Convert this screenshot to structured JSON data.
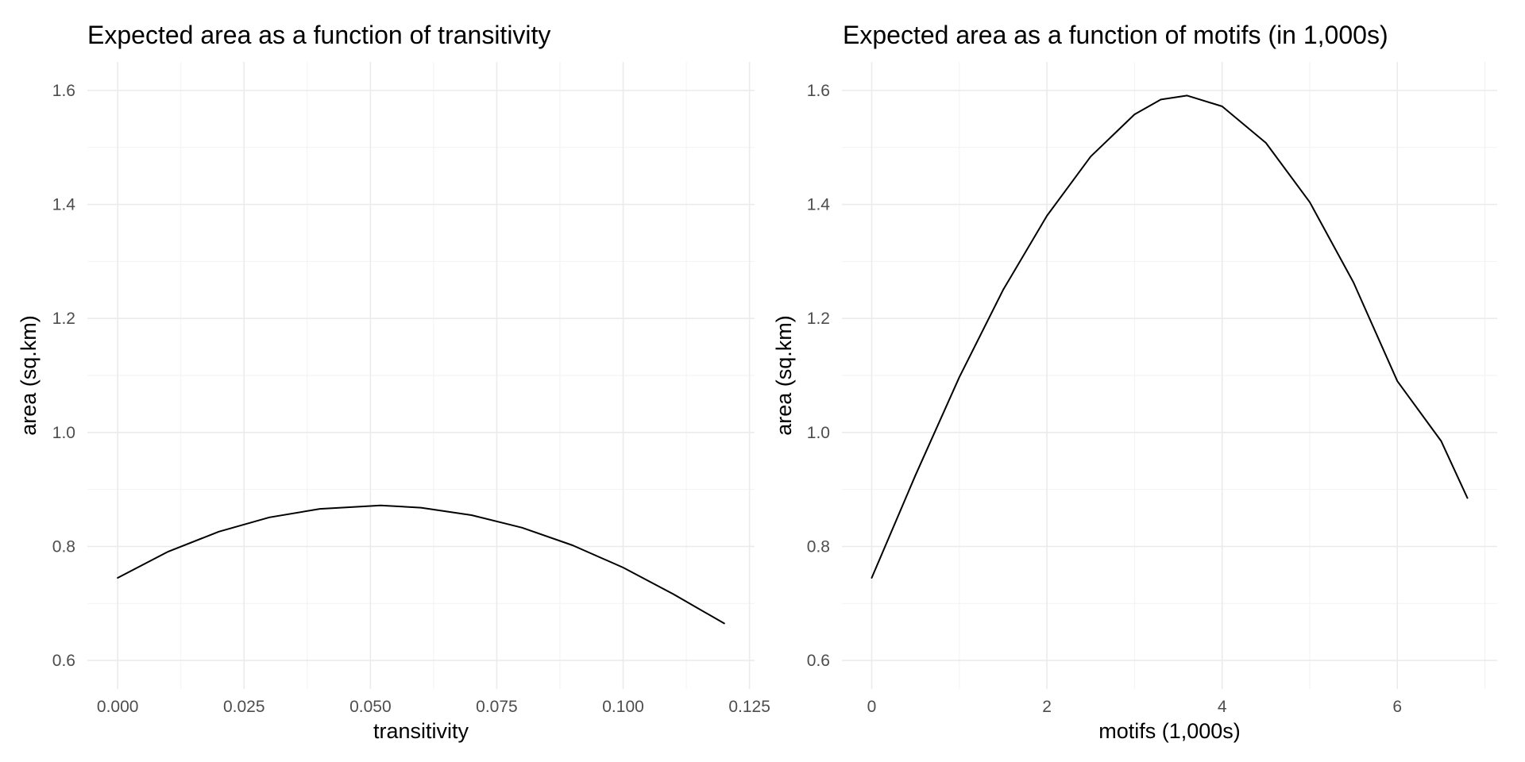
{
  "chart_data": [
    {
      "type": "line",
      "title": "Expected area as a function of transitivity",
      "xlabel": "transitivity",
      "ylabel": "area (sq.km)",
      "xlim": [
        -0.006,
        0.126
      ],
      "ylim": [
        0.55,
        1.65
      ],
      "x_ticks": [
        0.0,
        0.025,
        0.05,
        0.075,
        0.1,
        0.125
      ],
      "x_tick_labels": [
        "0.000",
        "0.025",
        "0.050",
        "0.075",
        "0.100",
        "0.125"
      ],
      "y_ticks": [
        0.6,
        0.8,
        1.0,
        1.2,
        1.4,
        1.6
      ],
      "y_tick_labels": [
        "0.6",
        "0.8",
        "1.0",
        "1.2",
        "1.4",
        "1.6"
      ],
      "grid": true,
      "series": [
        {
          "x": [
            0.0,
            0.01,
            0.02,
            0.03,
            0.04,
            0.05,
            0.052,
            0.06,
            0.07,
            0.08,
            0.09,
            0.1,
            0.11,
            0.12
          ],
          "y": [
            0.745,
            0.791,
            0.826,
            0.851,
            0.866,
            0.871,
            0.872,
            0.868,
            0.855,
            0.833,
            0.802,
            0.763,
            0.716,
            0.665
          ]
        }
      ]
    },
    {
      "type": "line",
      "title": "Expected area as a function of motifs (in 1,000s)",
      "xlabel": "motifs (1,000s)",
      "ylabel": "area (sq.km)",
      "xlim": [
        -0.34,
        7.14
      ],
      "ylim": [
        0.55,
        1.65
      ],
      "x_ticks": [
        0,
        2,
        4,
        6
      ],
      "x_tick_labels": [
        "0",
        "2",
        "4",
        "6"
      ],
      "y_ticks": [
        0.6,
        0.8,
        1.0,
        1.2,
        1.4,
        1.6
      ],
      "y_tick_labels": [
        "0.6",
        "0.8",
        "1.0",
        "1.2",
        "1.4",
        "1.6"
      ],
      "grid": true,
      "series": [
        {
          "x": [
            0.0,
            0.5,
            1.0,
            1.5,
            2.0,
            2.5,
            3.0,
            3.3,
            3.6,
            4.0,
            4.5,
            5.0,
            5.5,
            6.0,
            6.5,
            6.8
          ],
          "y": [
            0.745,
            0.925,
            1.097,
            1.25,
            1.38,
            1.484,
            1.558,
            1.584,
            1.591,
            1.572,
            1.508,
            1.404,
            1.263,
            1.09,
            0.985,
            0.885
          ]
        }
      ]
    }
  ]
}
